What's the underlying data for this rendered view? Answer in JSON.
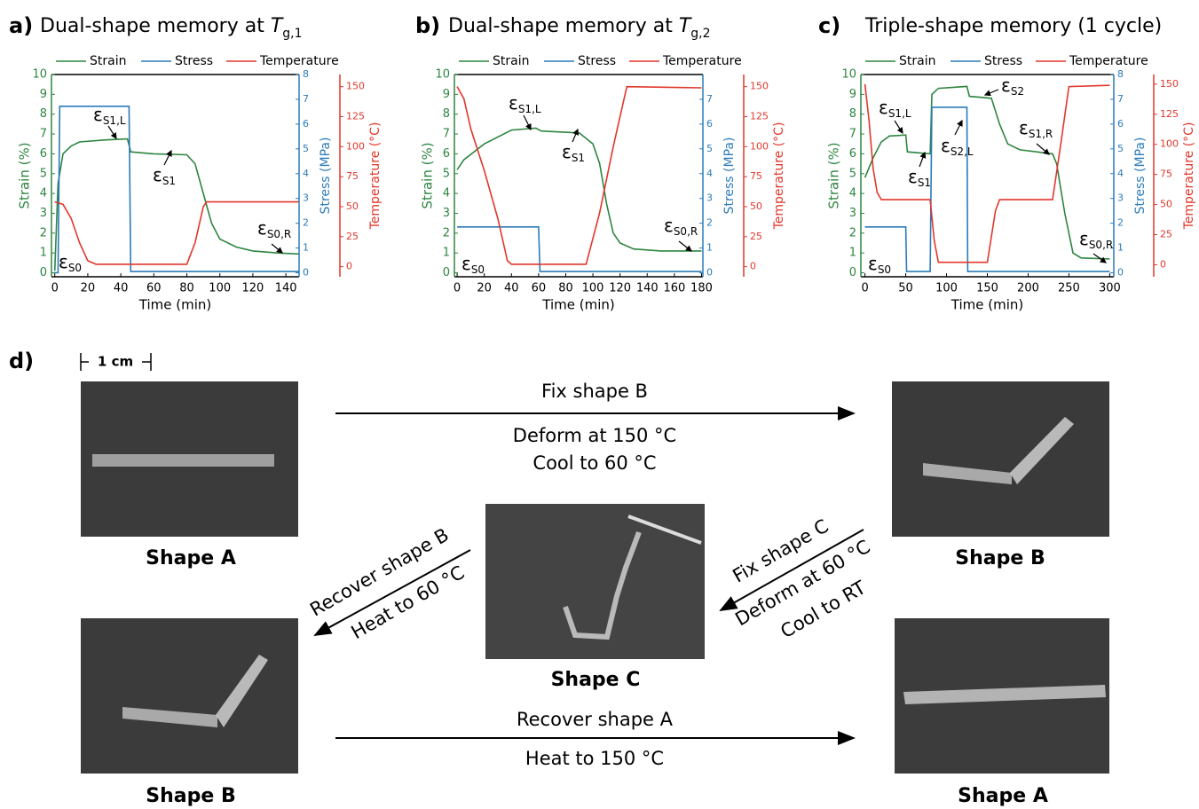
{
  "chart_data": [
    {
      "type": "line",
      "panel_label": "a)",
      "title": "Dual-shape memory at",
      "title_var": "T",
      "title_sub": "g,1",
      "x_label": "Time (min)",
      "y_label": "Strain (%)",
      "y2_label": "Stress (MPa)",
      "y3_label": "Temperature (°C)",
      "xlim": [
        -2,
        148
      ],
      "xticks": [
        0,
        20,
        40,
        60,
        80,
        100,
        120,
        140
      ],
      "ylim": [
        -0.2,
        10
      ],
      "yticks": [
        0,
        1,
        2,
        3,
        4,
        5,
        6,
        7,
        8,
        9,
        10
      ],
      "y2lim": [
        -0.16,
        8
      ],
      "y2ticks": [
        0,
        1,
        2,
        3,
        4,
        5,
        6,
        7,
        8
      ],
      "y3lim": [
        -8.4,
        160.1
      ],
      "y3ticks": [
        0,
        25,
        50,
        75,
        100,
        125,
        150
      ],
      "series": [
        {
          "name": "Strain",
          "color": "#2e8540",
          "axis": "y",
          "x": [
            0,
            2,
            5,
            10,
            15,
            30,
            44,
            46,
            60,
            80,
            85,
            90,
            95,
            100,
            110,
            120,
            135,
            148
          ],
          "values": [
            0.1,
            4.5,
            6.0,
            6.4,
            6.6,
            6.7,
            6.75,
            6.1,
            6.0,
            5.95,
            5.5,
            4.0,
            2.5,
            1.7,
            1.3,
            1.1,
            1.0,
            0.95
          ]
        },
        {
          "name": "Stress",
          "color": "#2b7bb9",
          "axis": "y2",
          "x": [
            0,
            2,
            3,
            45,
            46,
            148
          ],
          "values": [
            0,
            0,
            6.72,
            6.72,
            0.05,
            0.05
          ]
        },
        {
          "name": "Temperature",
          "color": "#e2372b",
          "axis": "y3",
          "x": [
            0,
            5,
            10,
            15,
            20,
            25,
            40,
            80,
            85,
            90,
            92,
            100,
            148
          ],
          "values": [
            54,
            52,
            40,
            20,
            5,
            2,
            2,
            2,
            20,
            50,
            54,
            54,
            54
          ]
        }
      ],
      "annotations": [
        {
          "symbol": "ε",
          "sub": "S1,L"
        },
        {
          "symbol": "ε",
          "sub": "S1"
        },
        {
          "symbol": "ε",
          "sub": "S0"
        },
        {
          "symbol": "ε",
          "sub": "S0,R"
        }
      ]
    },
    {
      "type": "line",
      "panel_label": "b)",
      "title": "Dual-shape memory at",
      "title_var": "T",
      "title_sub": "g,2",
      "x_label": "Time (min)",
      "y_label": "Strain (%)",
      "y2_label": "Stress (MPa)",
      "y3_label": "Temperature (°C)",
      "xlim": [
        -2,
        181
      ],
      "xticks": [
        0,
        20,
        40,
        60,
        80,
        100,
        120,
        140,
        160,
        180
      ],
      "ylim": [
        -0.2,
        10
      ],
      "yticks": [
        0,
        1,
        2,
        3,
        4,
        5,
        6,
        7,
        8,
        9,
        10
      ],
      "y2lim": [
        -0.16,
        8
      ],
      "y2ticks": [
        0,
        1,
        2,
        3,
        4,
        5,
        6,
        7
      ],
      "y3lim": [
        -8.4,
        160.1
      ],
      "y3ticks": [
        0,
        25,
        50,
        75,
        100,
        125,
        150
      ],
      "series": [
        {
          "name": "Strain",
          "color": "#2e8540",
          "axis": "y",
          "x": [
            0,
            5,
            20,
            40,
            58,
            62,
            90,
            100,
            105,
            110,
            115,
            120,
            130,
            150,
            180
          ],
          "values": [
            5.2,
            5.7,
            6.5,
            7.2,
            7.3,
            7.15,
            7.05,
            6.5,
            5.5,
            3.5,
            2.0,
            1.5,
            1.2,
            1.1,
            1.1
          ]
        },
        {
          "name": "Stress",
          "color": "#2b7bb9",
          "axis": "y2",
          "x": [
            0,
            60,
            61,
            180
          ],
          "values": [
            1.85,
            1.85,
            0.05,
            0.05
          ]
        },
        {
          "name": "Temperature",
          "color": "#e2372b",
          "axis": "y3",
          "x": [
            0,
            5,
            10,
            20,
            30,
            37,
            40,
            95,
            105,
            115,
            125,
            180
          ],
          "values": [
            150,
            140,
            115,
            80,
            40,
            5,
            2,
            2,
            45,
            100,
            150,
            149
          ]
        }
      ],
      "annotations": [
        {
          "symbol": "ε",
          "sub": "S1,L"
        },
        {
          "symbol": "ε",
          "sub": "S1"
        },
        {
          "symbol": "ε",
          "sub": "S0"
        },
        {
          "symbol": "ε",
          "sub": "S0,R"
        }
      ]
    },
    {
      "type": "line",
      "panel_label": "c)",
      "title": "Triple-shape memory (1 cycle)",
      "x_label": "Time (min)",
      "y_label": "Strain (%)",
      "y2_label": "Stress (MPa)",
      "y3_label": "Temperature (°C)",
      "xlim": [
        -5,
        305
      ],
      "xticks": [
        0,
        50,
        100,
        150,
        200,
        250,
        300
      ],
      "ylim": [
        -0.2,
        10
      ],
      "yticks": [
        0,
        1,
        2,
        3,
        4,
        5,
        6,
        7,
        8,
        9,
        10
      ],
      "y2lim": [
        -0.16,
        8
      ],
      "y2ticks": [
        0,
        1,
        2,
        3,
        4,
        5,
        6,
        7,
        8
      ],
      "y3lim": [
        -10,
        158
      ],
      "y3ticks": [
        0,
        25,
        50,
        75,
        100,
        125,
        150
      ],
      "series": [
        {
          "name": "Strain",
          "color": "#2e8540",
          "axis": "y",
          "x": [
            0,
            10,
            20,
            30,
            50,
            52,
            80,
            82,
            90,
            125,
            128,
            155,
            165,
            175,
            190,
            230,
            235,
            245,
            255,
            265,
            300
          ],
          "values": [
            4.8,
            5.8,
            6.6,
            6.9,
            6.95,
            6.1,
            6.0,
            9.0,
            9.3,
            9.4,
            8.9,
            8.8,
            7.5,
            6.5,
            6.2,
            6.0,
            5.5,
            3.0,
            1.0,
            0.75,
            0.7
          ]
        },
        {
          "name": "Stress",
          "color": "#2b7bb9",
          "axis": "y2",
          "x": [
            0,
            50,
            51,
            80,
            82,
            125,
            126,
            300
          ],
          "values": [
            1.85,
            1.85,
            0.05,
            0.05,
            6.68,
            6.68,
            0.05,
            0.05
          ]
        },
        {
          "name": "Temperature",
          "color": "#e2372b",
          "axis": "y3",
          "x": [
            0,
            5,
            10,
            15,
            20,
            80,
            85,
            90,
            150,
            160,
            165,
            230,
            240,
            250,
            300
          ],
          "values": [
            150,
            120,
            80,
            60,
            54,
            54,
            20,
            2,
            2,
            45,
            54,
            54,
            100,
            148,
            149
          ]
        }
      ],
      "annotations": [
        {
          "symbol": "ε",
          "sub": "S1,L"
        },
        {
          "symbol": "ε",
          "sub": "S1"
        },
        {
          "symbol": "ε",
          "sub": "S2,L"
        },
        {
          "symbol": "ε",
          "sub": "S2"
        },
        {
          "symbol": "ε",
          "sub": "S1,R"
        },
        {
          "symbol": "ε",
          "sub": "S0"
        },
        {
          "symbol": "ε",
          "sub": "S0,R"
        }
      ]
    }
  ],
  "panel_d": {
    "label": "d)",
    "scale_bar": "1 cm",
    "photos": [
      {
        "caption": "Shape A"
      },
      {
        "caption": "Shape B"
      },
      {
        "caption": "Shape C"
      },
      {
        "caption": "Shape B"
      },
      {
        "caption": "Shape A"
      }
    ],
    "arrows": [
      {
        "lines": [
          "Fix shape B",
          "Deform at 150 °C",
          "Cool to 60 °C"
        ]
      },
      {
        "lines": [
          "Fix shape C",
          "Deform at 60 °C",
          "Cool to RT"
        ]
      },
      {
        "lines": [
          "Recover shape B",
          "Heat to 60 °C"
        ]
      },
      {
        "lines": [
          "Recover shape A",
          "Heat to 150 °C"
        ]
      }
    ]
  }
}
